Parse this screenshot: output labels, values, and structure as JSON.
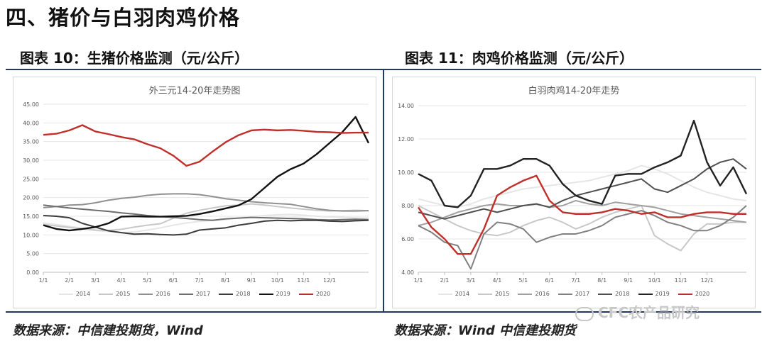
{
  "page": {
    "title": "四、猪价与白羽肉鸡价格",
    "fig10_title": "图表 10：生猪价格监测（元/公斤）",
    "fig11_title": "图表 11：肉鸡价格监测（元/公斤）",
    "source_left": "数据来源：中信建投期货，Wind",
    "source_right": "数据来源：Wind 中信建投期货",
    "watermark": "CFC农产品研究"
  },
  "chart_data": [
    {
      "type": "line",
      "title": "外三元14-20年走势图",
      "xlabel": "",
      "ylabel": "",
      "ylim": [
        0,
        45
      ],
      "yticks": [
        "0.00",
        "5.00",
        "10.00",
        "15.00",
        "20.00",
        "25.00",
        "30.00",
        "35.00",
        "40.00",
        "45.00"
      ],
      "ytick_values": [
        0,
        5,
        10,
        15,
        20,
        25,
        30,
        35,
        40,
        45
      ],
      "xlim": [
        0,
        12.5
      ],
      "xticks": [
        "1/1",
        "2/1",
        "3/1",
        "4/1",
        "5/1",
        "6/1",
        "7/1",
        "8/1",
        "9/1",
        "10/1",
        "11/1",
        "12/1"
      ],
      "grid": true,
      "legend": "bottom",
      "series": [
        {
          "name": "2014",
          "color": "#e6e6e6",
          "x": [
            0,
            0.5,
            1,
            1.5,
            2,
            2.5,
            3,
            3.5,
            4,
            4.5,
            5,
            5.5,
            6,
            6.5,
            7,
            7.5,
            8,
            8.5,
            9,
            9.5,
            10,
            10.5,
            11,
            11.5,
            12,
            12.5
          ],
          "values": [
            13.2,
            12.8,
            12.3,
            11.8,
            11.2,
            10.9,
            10.6,
            10.8,
            11.3,
            11.9,
            12.6,
            13.2,
            13.6,
            13.9,
            14.1,
            14.5,
            14.9,
            15.2,
            15.4,
            15.5,
            15.3,
            15.0,
            14.8,
            14.7,
            14.6,
            14.5
          ]
        },
        {
          "name": "2015",
          "color": "#c8c8c8",
          "x": [
            0,
            0.5,
            1,
            1.5,
            2,
            2.5,
            3,
            3.5,
            4,
            4.5,
            5,
            5.5,
            6,
            6.5,
            7,
            7.5,
            8,
            8.5,
            9,
            9.5,
            10,
            10.5,
            11,
            11.5,
            12,
            12.5
          ],
          "values": [
            12.8,
            12.4,
            12.0,
            11.6,
            11.3,
            11.2,
            11.5,
            12.1,
            12.6,
            13.0,
            14.5,
            15.8,
            16.6,
            17.2,
            17.8,
            18.0,
            18.3,
            18.0,
            17.6,
            17.2,
            16.9,
            16.6,
            16.4,
            16.5,
            16.6,
            16.5
          ]
        },
        {
          "name": "2016",
          "color": "#909090",
          "x": [
            0,
            0.5,
            1,
            1.5,
            2,
            2.5,
            3,
            3.5,
            4,
            4.5,
            5,
            5.5,
            6,
            6.5,
            7,
            7.5,
            8,
            8.5,
            9,
            9.5,
            10,
            10.5,
            11,
            11.5,
            12,
            12.5
          ],
          "values": [
            17.3,
            17.6,
            18.0,
            18.1,
            18.6,
            19.3,
            19.8,
            20.1,
            20.6,
            20.9,
            21.0,
            21.0,
            20.8,
            20.3,
            19.7,
            19.3,
            18.9,
            18.6,
            18.4,
            18.2,
            17.6,
            17.0,
            16.6,
            16.4,
            16.4,
            16.5
          ]
        },
        {
          "name": "2017",
          "color": "#6e6e6e",
          "x": [
            0,
            0.5,
            1,
            1.5,
            2,
            2.5,
            3,
            3.5,
            4,
            4.5,
            5,
            5.5,
            6,
            6.5,
            7,
            7.5,
            8,
            8.5,
            9,
            9.5,
            10,
            10.5,
            11,
            11.5,
            12,
            12.5
          ],
          "values": [
            18.0,
            17.6,
            17.2,
            16.9,
            16.6,
            16.3,
            15.9,
            15.6,
            15.2,
            14.9,
            14.7,
            14.4,
            14.1,
            13.9,
            14.3,
            14.5,
            14.7,
            14.6,
            14.5,
            14.4,
            14.3,
            14.1,
            14.0,
            14.1,
            14.2,
            14.1
          ]
        },
        {
          "name": "2018",
          "color": "#3c3c3c",
          "x": [
            0,
            0.5,
            1,
            1.5,
            2,
            2.5,
            3,
            3.5,
            4,
            4.5,
            5,
            5.5,
            6,
            6.5,
            7,
            7.5,
            8,
            8.5,
            9,
            9.5,
            10,
            10.5,
            11,
            11.5,
            12,
            12.5
          ],
          "values": [
            15.2,
            15.0,
            14.6,
            13.1,
            12.1,
            11.1,
            10.6,
            10.2,
            10.3,
            10.1,
            10.0,
            10.2,
            11.3,
            11.6,
            11.9,
            12.6,
            13.1,
            13.7,
            13.9,
            13.8,
            13.9,
            13.9,
            13.7,
            13.6,
            13.8,
            13.9
          ]
        },
        {
          "name": "2019",
          "color": "#111111",
          "x": [
            0,
            0.5,
            1,
            1.5,
            2,
            2.5,
            3,
            3.5,
            4,
            4.5,
            5,
            5.5,
            6,
            6.5,
            7,
            7.5,
            8,
            8.5,
            9,
            9.5,
            10,
            10.5,
            11,
            11.5,
            12,
            12.5
          ],
          "values": [
            12.6,
            11.6,
            11.2,
            11.6,
            12.1,
            13.1,
            14.9,
            15.0,
            14.9,
            14.9,
            15.0,
            15.1,
            15.6,
            16.3,
            17.1,
            17.9,
            19.6,
            22.6,
            25.6,
            27.6,
            29.1,
            31.6,
            34.6,
            37.6,
            41.6,
            34.6
          ]
        },
        {
          "name": "2020",
          "color": "#c0302b",
          "x": [
            0,
            0.5,
            1,
            1.5,
            2,
            2.5,
            3,
            3.5,
            4,
            4.5,
            5,
            5.5,
            6,
            6.5,
            7,
            7.5,
            8,
            8.5,
            9,
            9.5,
            10,
            10.5,
            11,
            11.5,
            12,
            12.5
          ],
          "values": [
            36.8,
            37.1,
            38.0,
            39.4,
            37.7,
            37.0,
            36.2,
            35.6,
            34.3,
            33.2,
            31.2,
            28.5,
            29.6,
            32.3,
            34.8,
            36.7,
            38.0,
            38.2,
            38.0,
            38.1,
            37.9,
            37.6,
            37.5,
            37.3,
            37.4,
            37.4
          ]
        }
      ]
    },
    {
      "type": "line",
      "title": "白羽肉鸡14-20年走势",
      "xlabel": "",
      "ylabel": "",
      "ylim": [
        4,
        14
      ],
      "yticks": [
        "4.00",
        "6.00",
        "8.00",
        "10.00",
        "12.00",
        "14.00"
      ],
      "ytick_values": [
        4,
        6,
        8,
        10,
        12,
        14
      ],
      "xlim": [
        0,
        12.5
      ],
      "xticks": [
        "1/1",
        "2/1",
        "3/1",
        "4/1",
        "5/1",
        "6/1",
        "7/1",
        "8/1",
        "9/1",
        "10/1",
        "11/1",
        "12/1"
      ],
      "grid": true,
      "legend": "bottom",
      "series": [
        {
          "name": "2014",
          "color": "#e6e6e6",
          "x": [
            0,
            0.5,
            1,
            1.5,
            2,
            2.5,
            3,
            3.5,
            4,
            4.5,
            5,
            5.5,
            6,
            6.5,
            7,
            7.5,
            8,
            8.5,
            9,
            9.5,
            10,
            10.5,
            11,
            11.5,
            12,
            12.5
          ],
          "values": [
            8.4,
            8.2,
            8.0,
            7.9,
            8.1,
            8.4,
            8.6,
            8.8,
            9.0,
            9.1,
            9.2,
            9.3,
            9.4,
            9.5,
            9.7,
            9.9,
            10.1,
            10.4,
            10.2,
            9.9,
            9.5,
            9.1,
            8.8,
            8.6,
            8.4,
            8.3
          ]
        },
        {
          "name": "2015",
          "color": "#c8c8c8",
          "x": [
            0,
            0.5,
            1,
            1.5,
            2,
            2.5,
            3,
            3.5,
            4,
            4.5,
            5,
            5.5,
            6,
            6.5,
            7,
            7.5,
            8,
            8.5,
            9,
            9.5,
            10,
            10.5,
            11,
            11.5,
            12,
            12.5
          ],
          "values": [
            8.0,
            7.6,
            7.2,
            6.8,
            6.5,
            6.3,
            6.2,
            6.4,
            6.8,
            7.1,
            7.3,
            7.0,
            6.6,
            6.9,
            7.3,
            7.6,
            7.8,
            8.0,
            6.2,
            5.7,
            5.3,
            6.3,
            6.9,
            6.9,
            7.0,
            7.0
          ]
        },
        {
          "name": "2016",
          "color": "#a0a0a0",
          "x": [
            0,
            0.5,
            1,
            1.5,
            2,
            2.5,
            3,
            3.5,
            4,
            4.5,
            5,
            5.5,
            6,
            6.5,
            7,
            7.5,
            8,
            8.5,
            9,
            9.5,
            10,
            10.5,
            11,
            11.5,
            12,
            12.5
          ],
          "values": [
            6.8,
            7.0,
            7.3,
            7.6,
            7.8,
            8.0,
            8.1,
            8.0,
            8.0,
            8.1,
            7.9,
            8.0,
            8.3,
            8.1,
            8.0,
            8.2,
            8.1,
            8.0,
            7.9,
            7.7,
            7.5,
            7.4,
            7.3,
            7.2,
            7.1,
            7.0
          ]
        },
        {
          "name": "2017",
          "color": "#808080",
          "x": [
            0,
            0.5,
            1,
            1.5,
            2,
            2.5,
            3,
            3.5,
            4,
            4.5,
            5,
            5.5,
            6,
            6.5,
            7,
            7.5,
            8,
            8.5,
            9,
            9.5,
            10,
            10.5,
            11,
            11.5,
            12,
            12.5
          ],
          "values": [
            6.8,
            6.4,
            5.8,
            5.6,
            4.2,
            6.3,
            7.0,
            6.9,
            6.6,
            5.8,
            6.1,
            6.3,
            6.3,
            6.5,
            6.8,
            7.3,
            7.5,
            7.7,
            7.4,
            7.0,
            6.8,
            6.5,
            6.5,
            6.8,
            7.3,
            8.0
          ]
        },
        {
          "name": "2018",
          "color": "#505050",
          "x": [
            0,
            0.5,
            1,
            1.5,
            2,
            2.5,
            3,
            3.5,
            4,
            4.5,
            5,
            5.5,
            6,
            6.5,
            7,
            7.5,
            8,
            8.5,
            9,
            9.5,
            10,
            10.5,
            11,
            11.5,
            12,
            12.5
          ],
          "values": [
            7.6,
            7.4,
            7.2,
            7.4,
            7.6,
            7.8,
            7.6,
            7.8,
            8.0,
            8.1,
            7.9,
            8.3,
            8.6,
            8.8,
            9.0,
            9.2,
            9.4,
            9.6,
            9.0,
            8.8,
            9.2,
            9.6,
            10.2,
            10.6,
            10.8,
            10.2
          ]
        },
        {
          "name": "2019",
          "color": "#222222",
          "x": [
            0,
            0.5,
            1,
            1.5,
            2,
            2.5,
            3,
            3.5,
            4,
            4.5,
            5,
            5.5,
            6,
            6.5,
            7,
            7.5,
            8,
            8.5,
            9,
            9.5,
            10,
            10.5,
            11,
            11.5,
            12,
            12.5
          ],
          "values": [
            9.9,
            9.5,
            8.0,
            7.9,
            8.6,
            10.2,
            10.2,
            10.4,
            10.8,
            10.8,
            10.4,
            9.3,
            8.6,
            8.3,
            8.1,
            9.8,
            9.9,
            9.9,
            10.3,
            10.6,
            11.0,
            13.1,
            10.6,
            9.2,
            10.3,
            8.7
          ]
        },
        {
          "name": "2020",
          "color": "#c0302b",
          "x": [
            0,
            0.5,
            1,
            1.5,
            2,
            2.5,
            3,
            3.5,
            4,
            4.5,
            5,
            5.5,
            6,
            6.5,
            7,
            7.5,
            8,
            8.5,
            9,
            9.5,
            10,
            10.5,
            11,
            11.5,
            12,
            12.5
          ],
          "values": [
            7.9,
            6.7,
            6.0,
            5.1,
            5.1,
            6.6,
            8.6,
            9.1,
            9.5,
            9.8,
            8.3,
            7.6,
            7.5,
            7.5,
            7.6,
            7.8,
            7.7,
            7.5,
            7.6,
            7.3,
            7.3,
            7.5,
            7.6,
            7.6,
            7.5,
            7.5
          ]
        }
      ]
    }
  ]
}
